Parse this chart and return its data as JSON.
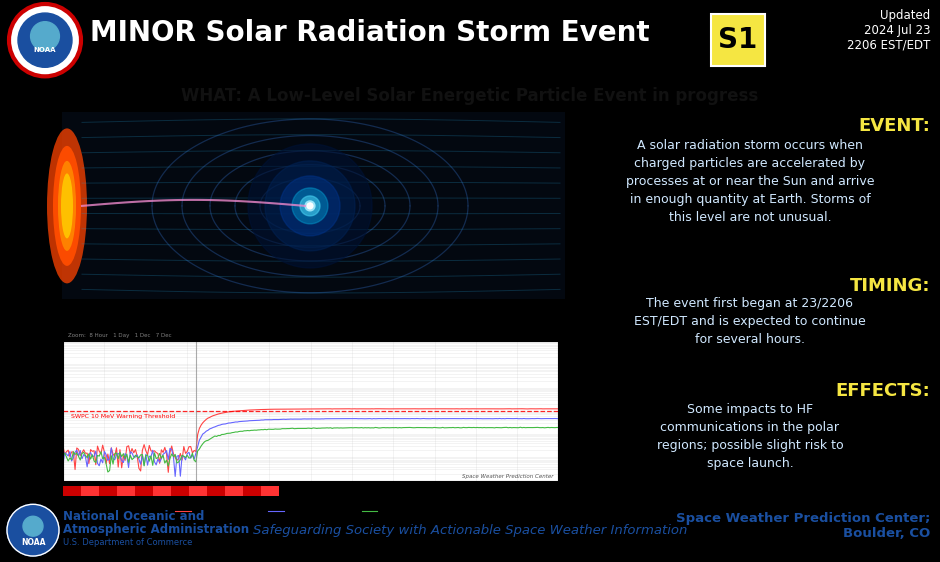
{
  "title_main": "MINOR Solar Radiation Storm Event",
  "title_badge": "S1",
  "updated_text": "Updated\n2024 Jul 23\n2206 EST/EDT",
  "what_text": "WHAT: A Low-Level Solar Energetic Particle Event in progress",
  "event_label": "EVENT:",
  "event_text": "A solar radiation storm occurs when\ncharged particles are accelerated by\nprocesses at or near the Sun and arrive\nin enough quantity at Earth. Storms of\nthis level are not unusual.",
  "timing_label": "TIMING:",
  "timing_text": "The event first began at 23/2206\nEST/EDT and is expected to continue\nfor several hours.",
  "effects_label": "EFFECTS:",
  "effects_text": "Some impacts to HF\ncommunications in the polar\nregions; possible slight risk to\nspace launch.",
  "footer_left1": "National Oceanic and",
  "footer_left2": "Atmospheric Administration",
  "footer_left3": "U.S. Department of Commerce",
  "footer_center": "Safeguarding Society with Actionable Space Weather Information",
  "footer_right": "Space Weather Prediction Center;\nBoulder, CO",
  "header_bg": "#1a4fa0",
  "what_bg": "#c8c8c8",
  "main_bg": "#000000",
  "footer_bg": "#c8d4e8",
  "badge_bg": "#f5e642",
  "badge_text_color": "#000000",
  "title_color": "#ffffff",
  "what_color": "#111111",
  "event_label_color": "#f5e642",
  "event_text_color": "#d0e8ff",
  "timing_label_color": "#f5e642",
  "timing_text_color": "#d0e8ff",
  "effects_label_color": "#f5e642",
  "effects_text_color": "#d0e8ff",
  "footer_text_color": "#1a4fa0",
  "updated_color": "#ffffff",
  "chart_line_10mev": "#ff4444",
  "chart_line_50mev": "#6666ff",
  "chart_line_100mev": "#44bb44",
  "chart_threshold": "#ff0000",
  "chart_vline": "#888888"
}
